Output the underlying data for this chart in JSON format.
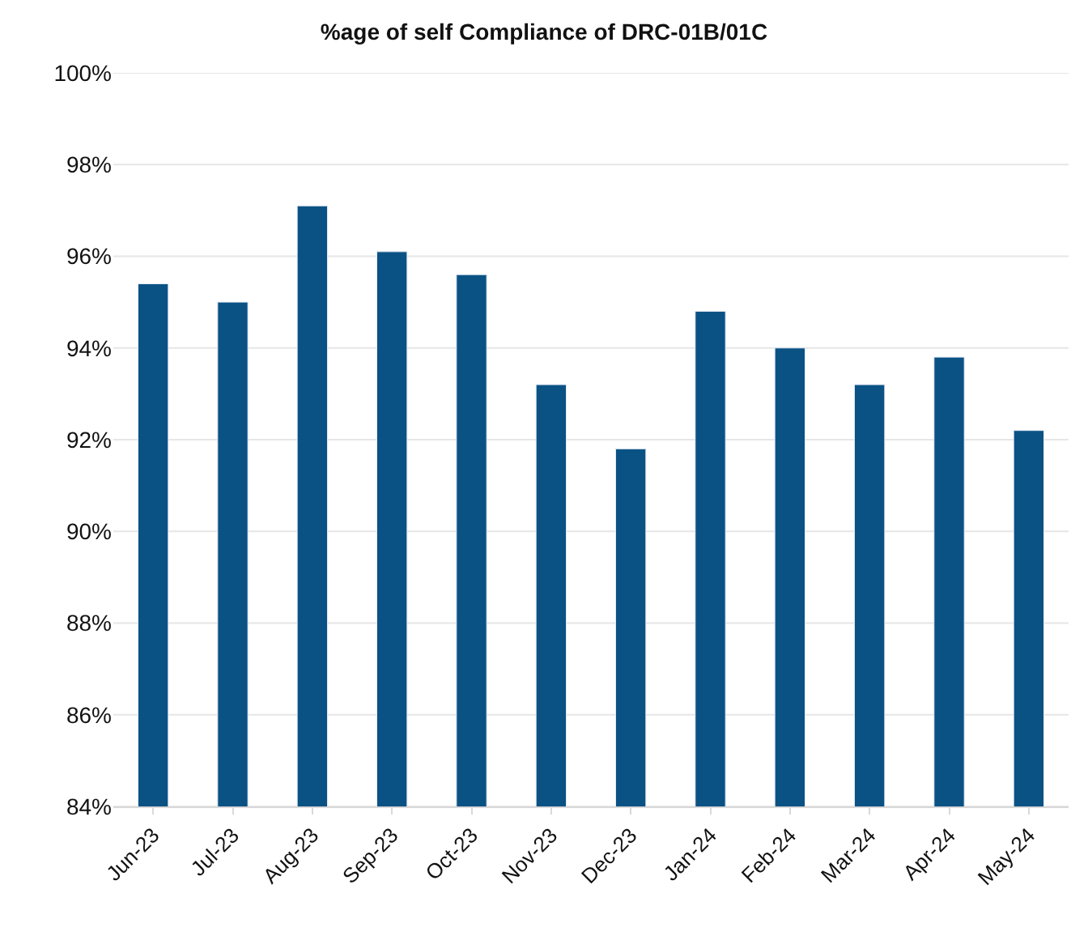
{
  "chart_data": {
    "type": "bar",
    "title": "%age of self Compliance of DRC-01B/01C",
    "categories": [
      "Jun-23",
      "Jul-23",
      "Aug-23",
      "Sep-23",
      "Oct-23",
      "Nov-23",
      "Dec-23",
      "Jan-24",
      "Feb-24",
      "Mar-24",
      "Apr-24",
      "May-24"
    ],
    "values": [
      95.4,
      95.0,
      97.1,
      96.1,
      95.6,
      93.2,
      91.8,
      94.8,
      94.0,
      93.2,
      93.8,
      92.2
    ],
    "color": "#0b5284",
    "ylim": [
      84,
      100
    ],
    "yticks": [
      {
        "value": 84,
        "label": "84%"
      },
      {
        "value": 86,
        "label": "86%"
      },
      {
        "value": 88,
        "label": "88%"
      },
      {
        "value": 90,
        "label": "90%"
      },
      {
        "value": 92,
        "label": "92%"
      },
      {
        "value": 94,
        "label": "94%"
      },
      {
        "value": 96,
        "label": "96%"
      },
      {
        "value": 98,
        "label": "98%"
      },
      {
        "value": 100,
        "label": "100%"
      }
    ],
    "grid": "y"
  }
}
